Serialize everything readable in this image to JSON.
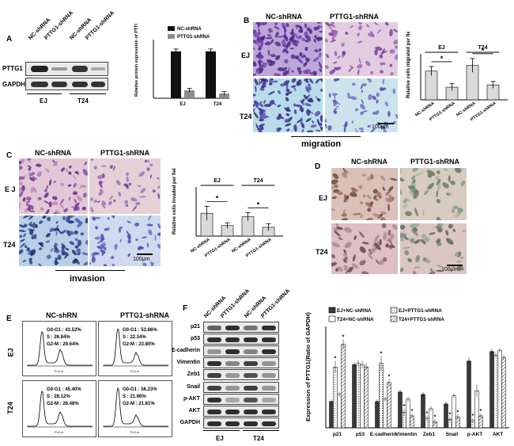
{
  "panelA": {
    "label": "A",
    "lanes": [
      "NC-shRNA",
      "PTTG1-shRNA",
      "NC-shRNA",
      "PTTG1-shRNA"
    ],
    "rows": [
      "PTTG1",
      "GAPDH"
    ],
    "groups": [
      "EJ",
      "T24"
    ]
  },
  "panelB": {
    "label": "B",
    "cols": [
      "NC-shRNA",
      "PTTG1-shRNA"
    ],
    "rows": [
      "EJ",
      "T24"
    ],
    "scale": "100μm",
    "caption": "migration"
  },
  "panelC": {
    "label": "C",
    "cols": [
      "NC-shRNA",
      "PTTG1-shRNA"
    ],
    "rows": [
      "E J",
      "T24"
    ],
    "scale": "100μm",
    "caption": "invasion"
  },
  "panelD": {
    "label": "D",
    "cols": [
      "NC-shRNA",
      "PTTG1-shRNA"
    ],
    "rows": [
      "EJ",
      "T24"
    ],
    "scale": "100μm"
  },
  "panelE": {
    "label": "E",
    "cols": [
      "NC-shRN",
      "PTTG1-shRNA"
    ],
    "rows": [
      "EJ",
      "T24"
    ],
    "xaxis": "FL2-A",
    "stats": [
      {
        "g": "43.52%",
        "s": "26.84%",
        "g2": "29.64%"
      },
      {
        "g": "53.86%",
        "s": "22.34%",
        "g2": "23.80%"
      },
      {
        "g": "45.40%",
        "s": "28.12%",
        "g2": "26.48%"
      },
      {
        "g": "56.23%",
        "s": "21.96%",
        "g2": "21.81%"
      }
    ],
    "g_label": "G0-G1 :",
    "s_label": "S :",
    "g2_label": "G2-M :"
  },
  "panelF": {
    "label": "F",
    "lanes": [
      "NC-shRNA",
      "PTTG1-shRNA",
      "NC-shRNA",
      "PTTG1-shRNA"
    ],
    "rows": [
      "p21",
      "p53",
      "E-cadherin",
      "Vimentin",
      "Zeb1",
      "Snail",
      "p-AKT",
      "AKT",
      "GAPDH"
    ],
    "groups": [
      "EJ",
      "T24"
    ]
  },
  "chart_data": [
    {
      "type": "bar",
      "id": "A",
      "categories": [
        "EJ",
        "T24"
      ],
      "series": [
        {
          "name": "NC-shRNA",
          "values": [
            1.0,
            1.0
          ],
          "err": [
            0.05,
            0.05
          ],
          "color": "#111111"
        },
        {
          "name": "PTTG1-shRNA",
          "values": [
            0.17,
            0.1
          ],
          "err": [
            0.04,
            0.04
          ],
          "color": "#8c8c8c"
        }
      ],
      "ylabel": "Relative protein expression of PTTG1",
      "ylim": [
        0,
        1.25
      ],
      "yticks": [],
      "legend": "top-right"
    },
    {
      "type": "bar",
      "id": "B",
      "categories": [
        "NC-shRNA",
        "PTTG1-shRNA",
        "NC-shRNA",
        "PTTG1-shRNA"
      ],
      "groups": [
        "EJ",
        "T24"
      ],
      "values": [
        125,
        55,
        150,
        65
      ],
      "err": [
        20,
        15,
        30,
        15
      ],
      "color": "#d9d9d9",
      "ylabel": "Relative cells migrated per field",
      "ylim": [
        0,
        200
      ],
      "yticks": [],
      "significance": [
        "*",
        "*"
      ]
    },
    {
      "type": "bar",
      "id": "C",
      "categories": [
        "NC-shRNA",
        "PTTG1-shRNA",
        "NC-shRNA",
        "PTTG1-shRNA"
      ],
      "groups": [
        "EJ",
        "T24"
      ],
      "values": [
        65,
        30,
        55,
        25
      ],
      "err": [
        20,
        8,
        12,
        10
      ],
      "color": "#d9d9d9",
      "ylabel": "Relative cells invaded per field",
      "ylim": [
        0,
        140
      ],
      "yticks": [],
      "significance": [
        "*",
        "*"
      ]
    },
    {
      "type": "bar",
      "id": "F",
      "categories": [
        "p21",
        "p53",
        "E-cadherin",
        "Vimentin",
        "Zeb1",
        "Snail",
        "p-AKT",
        "AKT"
      ],
      "series": [
        {
          "name": "EJ+NC-shRNA",
          "values": [
            0.22,
            0.53,
            0.22,
            0.3,
            0.28,
            0.2,
            0.56,
            0.64
          ],
          "err": [
            0.02,
            0.02,
            0.02,
            0.02,
            0.02,
            0.02,
            0.03,
            0.02
          ],
          "fill": "solid-dark"
        },
        {
          "name": "EJ+PTTG1-shRNA",
          "values": [
            0.51,
            0.54,
            0.54,
            0.13,
            0.08,
            0.07,
            0.06,
            0.61
          ],
          "err": [
            0.05,
            0.03,
            0.06,
            0.03,
            0.02,
            0.02,
            0.02,
            0.02
          ],
          "fill": "dotted"
        },
        {
          "name": "T24+NC-shRNA",
          "values": [
            0.28,
            0.53,
            0.24,
            0.24,
            0.16,
            0.27,
            0.31,
            0.65
          ],
          "err": [
            0.02,
            0.03,
            0.02,
            0.02,
            0.02,
            0.02,
            0.05,
            0.02
          ],
          "fill": "white"
        },
        {
          "name": "T24+PTTG1-shRNA",
          "values": [
            0.7,
            0.51,
            0.38,
            0.1,
            0.05,
            0.09,
            0.1,
            0.59
          ],
          "err": [
            0.04,
            0.03,
            0.03,
            0.02,
            0.02,
            0.02,
            0.02,
            0.02
          ],
          "fill": "hatched"
        }
      ],
      "ylabel": "Expression of PTTG1(Ratio of GAPDH)",
      "ylim": [
        0,
        0.85
      ],
      "yticks": [],
      "legend": "top"
    }
  ]
}
